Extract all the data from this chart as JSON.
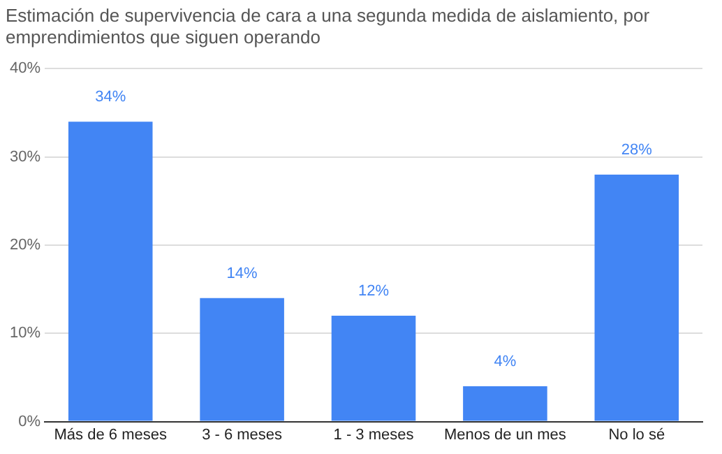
{
  "chart_data": {
    "type": "bar",
    "title": "Estimación de supervivencia de cara a una segunda medida de aislamiento, por emprendimientos que siguen operando",
    "categories": [
      "Más de 6 meses",
      "3 - 6 meses",
      "1 - 3 meses",
      "Menos de un mes",
      "No lo sé"
    ],
    "values": [
      34,
      14,
      12,
      4,
      28
    ],
    "value_labels": [
      "34%",
      "14%",
      "12%",
      "4%",
      "28%"
    ],
    "color": "#4285f4",
    "ylim": [
      0,
      40
    ],
    "yticks": [
      {
        "value": 0,
        "label": "0%"
      },
      {
        "value": 10,
        "label": "10%"
      },
      {
        "value": 20,
        "label": "20%"
      },
      {
        "value": 30,
        "label": "30%"
      },
      {
        "value": 40,
        "label": "40%"
      }
    ],
    "grid": "y",
    "legend": false
  }
}
